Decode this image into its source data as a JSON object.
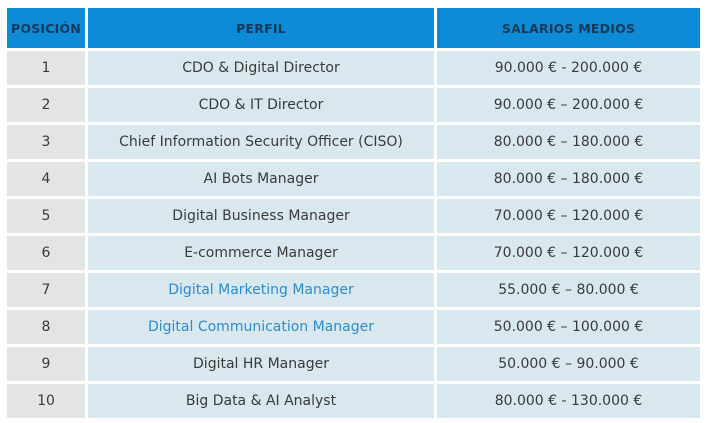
{
  "table": {
    "headers": {
      "posicion": "POSICIÓN",
      "perfil": "PERFIL",
      "salarios": "SALARIOS MEDIOS"
    },
    "rows": [
      {
        "pos": "1",
        "perfil": "CDO & Digital Director",
        "salario": "90.000 € - 200.000 €",
        "link": false
      },
      {
        "pos": "2",
        "perfil": "CDO & IT Director",
        "salario": "90.000 € – 200.000 €",
        "link": false
      },
      {
        "pos": "3",
        "perfil": "Chief Information Security Officer (CISO)",
        "salario": "80.000 € – 180.000 €",
        "link": false
      },
      {
        "pos": "4",
        "perfil": "AI Bots Manager",
        "salario": "80.000 € – 180.000 €",
        "link": false
      },
      {
        "pos": "5",
        "perfil": "Digital Business Manager",
        "salario": "70.000 € – 120.000 €",
        "link": false
      },
      {
        "pos": "6",
        "perfil": "E-commerce Manager",
        "salario": "70.000 € – 120.000 €",
        "link": false
      },
      {
        "pos": "7",
        "perfil": "Digital Marketing Manager",
        "salario": "55.000 € – 80.000 €",
        "link": true
      },
      {
        "pos": "8",
        "perfil": "Digital Communication Manager",
        "salario": "50.000 € – 100.000 €",
        "link": true
      },
      {
        "pos": "9",
        "perfil": "Digital HR Manager",
        "salario": "50.000 € – 90.000 €",
        "link": false
      },
      {
        "pos": "10",
        "perfil": "Big Data & AI Analyst",
        "salario": "80.000 € - 130.000 €",
        "link": false
      }
    ]
  },
  "colors": {
    "header_bg": "#0e8bd6",
    "header_text": "#103a5a",
    "pos_cell_bg": "#e4e4e4",
    "data_cell_bg": "#d9e8ef",
    "link_text": "#2b8ad3"
  }
}
